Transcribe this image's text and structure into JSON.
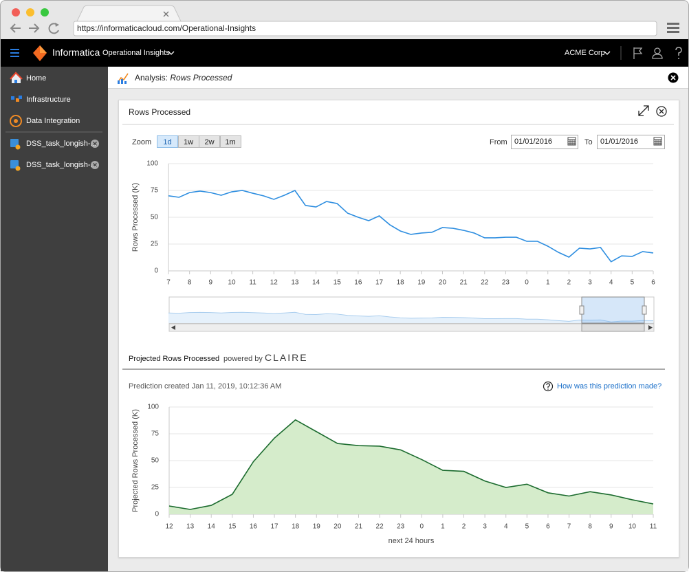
{
  "browser": {
    "url": "https://informaticacloud.com/Operational-Insights"
  },
  "header": {
    "brand": "Informatica",
    "app": "Operational Insights",
    "org": "ACME Corp"
  },
  "sidebar": {
    "items": [
      "Home",
      "Infrastructure",
      "Data Integration"
    ],
    "tasks": [
      "DSS_task_longish-...",
      "DSS_task_longish-..."
    ]
  },
  "analysis": {
    "label": "Analysis:",
    "subject": "Rows Processed"
  },
  "controls": {
    "zoom_label": "Zoom",
    "zoom_options": [
      "1d",
      "1w",
      "2w",
      "1m"
    ],
    "selected": "1d",
    "from_label": "From",
    "from": "01/01/2016",
    "to_label": "To",
    "to": "01/01/2016"
  },
  "projection": {
    "powered_by": "powered by",
    "engine": "CLAIRE",
    "created": "Prediction created Jan 11, 2019, 10:12:36 AM",
    "help": "How was this prediction made?"
  },
  "chart_data": [
    {
      "type": "line",
      "title": "Rows Processed",
      "ylabel": "Rows Processed (K)",
      "color": "#2e8ee0",
      "categories": [
        "7",
        null,
        "8",
        null,
        "9",
        null,
        "10",
        null,
        "11",
        null,
        "12",
        null,
        "13",
        null,
        "14",
        null,
        "15",
        null,
        "16",
        null,
        "17",
        null,
        "18",
        null,
        "19",
        null,
        "20",
        null,
        "21",
        null,
        "22",
        null,
        "23",
        null,
        "0",
        null,
        "1",
        null,
        "2",
        null,
        "3",
        null,
        "4",
        null,
        "5",
        null,
        "6"
      ],
      "values": [
        70,
        68.6,
        73,
        74.4,
        73,
        70.5,
        73.7,
        75,
        72.4,
        70,
        66.7,
        70.5,
        75,
        61,
        59.6,
        64.7,
        62.8,
        53.8,
        50,
        46.8,
        51.3,
        43,
        37.2,
        34,
        35.3,
        36,
        40.4,
        39.7,
        37.8,
        35.3,
        30.8,
        30.8,
        31.4,
        31.4,
        27.6,
        27.6,
        23,
        17.3,
        12.8,
        21.2,
        20.5,
        21.8,
        8.5,
        14,
        13.5,
        18,
        16.7
      ],
      "ylim": [
        0,
        100
      ],
      "yticks": [
        0,
        25,
        50,
        75,
        100
      ],
      "grid": true
    },
    {
      "type": "area",
      "title": "Projected Rows Processed",
      "ylabel": "Projected Rows Processed (K)",
      "xlabel": "next 24 hours",
      "color": "#1b6b2e",
      "area_color": "#d5eccb",
      "categories": [
        "12",
        "13",
        "14",
        "15",
        "16",
        "17",
        "18",
        "19",
        "20",
        "21",
        "22",
        "23",
        "0",
        "1",
        "2",
        "3",
        "4",
        "5",
        "6",
        "7",
        "8",
        "9",
        "10",
        "11"
      ],
      "values": [
        7.7,
        4.5,
        8.3,
        18.6,
        49,
        71,
        88,
        77,
        66,
        64,
        63.5,
        60,
        51,
        41,
        40,
        31,
        25,
        28,
        20,
        17,
        21,
        18,
        13.5,
        9.6
      ],
      "ylim": [
        0,
        100
      ],
      "yticks": [
        0,
        25,
        50,
        75,
        100
      ],
      "grid": true
    }
  ]
}
